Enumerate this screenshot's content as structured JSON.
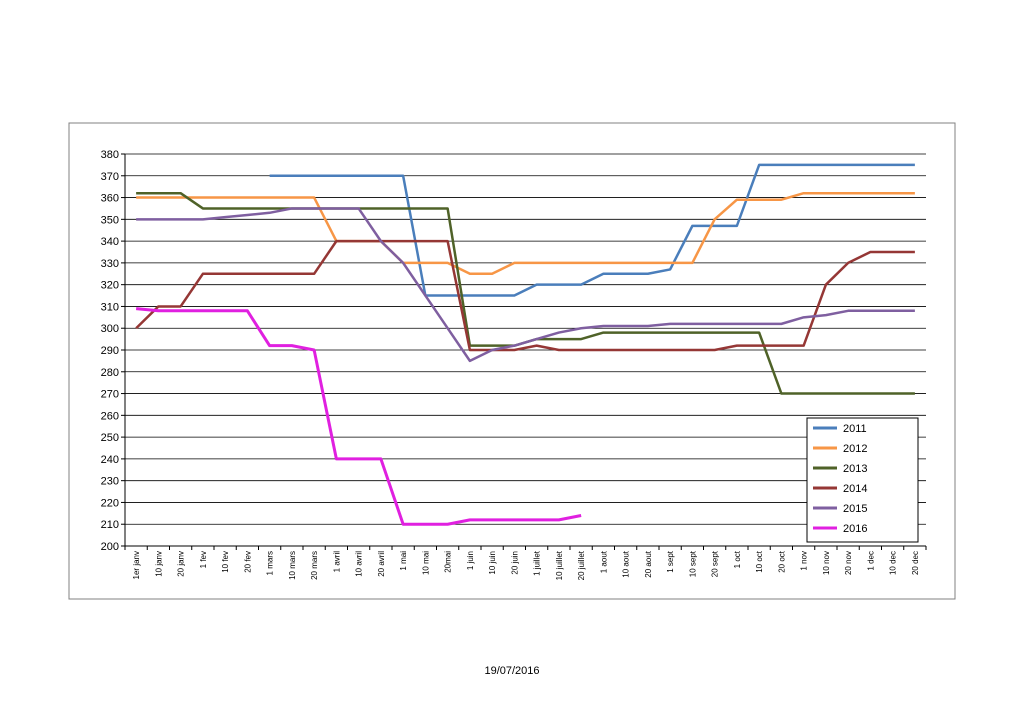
{
  "footer": {
    "date": "19/07/2016"
  },
  "chart_data": {
    "type": "line",
    "title": "",
    "xlabel": "",
    "ylabel": "",
    "ylim": [
      200,
      380
    ],
    "ytick_step": 10,
    "grid": true,
    "legend_position": "bottom-right",
    "categories": [
      "1er janv",
      "10 janv",
      "20 janv",
      "1 fev",
      "10 fev",
      "20 fev",
      "1 mars",
      "10 mars",
      "20 mars",
      "1 avril",
      "10 avril",
      "20 avril",
      "1 mai",
      "10 mai",
      "20mai",
      "1 juin",
      "10 juin",
      "20 juin",
      "1 juillet",
      "10 juillet",
      "20 juillet",
      "1 aout",
      "10 aout",
      "20 aout",
      "1 sept",
      "10 sept",
      "20 sept",
      "1 oct",
      "10 oct",
      "20 oct",
      "1 nov",
      "10 nov",
      "20 nov",
      "1 dec",
      "10 dec",
      "20 dec"
    ],
    "series": [
      {
        "name": "2011",
        "color": "#4a7ebb",
        "values": [
          null,
          null,
          null,
          null,
          null,
          null,
          370,
          370,
          370,
          370,
          370,
          370,
          370,
          315,
          315,
          315,
          315,
          315,
          320,
          320,
          320,
          325,
          325,
          325,
          327,
          347,
          347,
          347,
          375,
          375,
          375,
          375,
          375,
          375,
          375,
          375
        ]
      },
      {
        "name": "2012",
        "color": "#f79646",
        "values": [
          360,
          360,
          360,
          360,
          360,
          360,
          360,
          360,
          360,
          340,
          340,
          340,
          330,
          330,
          330,
          325,
          325,
          330,
          330,
          330,
          330,
          330,
          330,
          330,
          330,
          330,
          350,
          359,
          359,
          359,
          362,
          362,
          362,
          362,
          362,
          362
        ]
      },
      {
        "name": "2013",
        "color": "#4f6228",
        "values": [
          362,
          362,
          362,
          355,
          355,
          355,
          355,
          355,
          355,
          355,
          355,
          355,
          355,
          355,
          355,
          292,
          292,
          292,
          295,
          295,
          295,
          298,
          298,
          298,
          298,
          298,
          298,
          298,
          298,
          270,
          270,
          270,
          270,
          270,
          270,
          270
        ]
      },
      {
        "name": "2014",
        "color": "#953735",
        "values": [
          300,
          310,
          310,
          325,
          325,
          325,
          325,
          325,
          325,
          340,
          340,
          340,
          340,
          340,
          340,
          290,
          290,
          290,
          292,
          290,
          290,
          290,
          290,
          290,
          290,
          290,
          290,
          292,
          292,
          292,
          292,
          320,
          330,
          335,
          335,
          335
        ]
      },
      {
        "name": "2015",
        "color": "#7f5fa0",
        "values": [
          350,
          350,
          350,
          350,
          351,
          352,
          353,
          355,
          355,
          355,
          355,
          340,
          330,
          315,
          300,
          285,
          290,
          292,
          295,
          298,
          300,
          301,
          301,
          301,
          302,
          302,
          302,
          302,
          302,
          302,
          305,
          306,
          308,
          308,
          308,
          308
        ]
      },
      {
        "name": "2016",
        "color": "#e020e0",
        "values": [
          309,
          308,
          308,
          308,
          308,
          308,
          292,
          292,
          290,
          240,
          240,
          240,
          210,
          210,
          210,
          212,
          212,
          212,
          212,
          212,
          214,
          null,
          null,
          null,
          null,
          null,
          null,
          null,
          null,
          null,
          null,
          null,
          null,
          null,
          null,
          null
        ]
      }
    ]
  }
}
